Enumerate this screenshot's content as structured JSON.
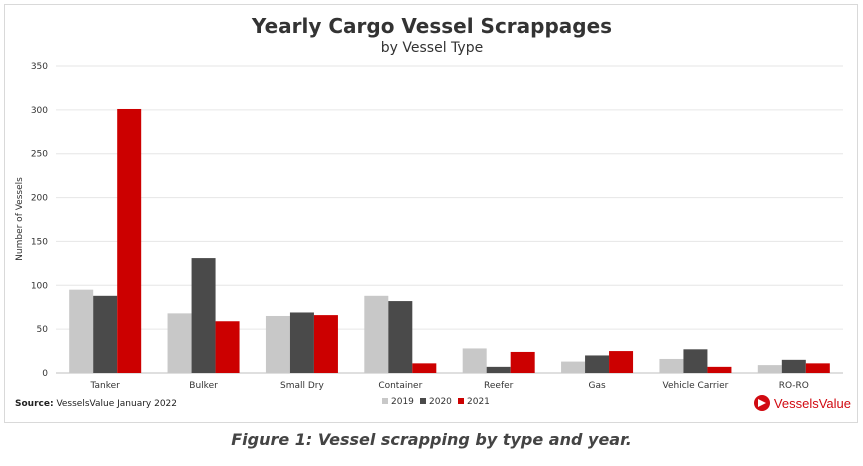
{
  "chart_data": {
    "type": "bar",
    "title": "Yearly Cargo Vessel Scrappages",
    "subtitle": "by Vessel Type",
    "ylabel": "Number of Vessels",
    "xlabel": "",
    "ylim": [
      0,
      350
    ],
    "yticks": [
      0,
      50,
      100,
      150,
      200,
      250,
      300,
      350
    ],
    "grid": true,
    "legend_position": "bottom",
    "categories": [
      "Tanker",
      "Bulker",
      "Small Dry",
      "Container",
      "Reefer",
      "Gas",
      "Vehicle Carrier",
      "RO-RO"
    ],
    "series": [
      {
        "name": "2019",
        "color": "#c8c8c8",
        "values": [
          95,
          68,
          65,
          88,
          28,
          13,
          16,
          9
        ]
      },
      {
        "name": "2020",
        "color": "#4a4a4a",
        "values": [
          88,
          131,
          69,
          82,
          7,
          20,
          27,
          15
        ]
      },
      {
        "name": "2021",
        "color": "#cc0000",
        "values": [
          301,
          59,
          66,
          11,
          24,
          25,
          7,
          11
        ]
      }
    ]
  },
  "source": {
    "label": "Source:",
    "text": "VesselsValue January 2022"
  },
  "logo": {
    "text": "VesselsValue"
  },
  "caption": "Figure 1: Vessel scrapping by type and year."
}
